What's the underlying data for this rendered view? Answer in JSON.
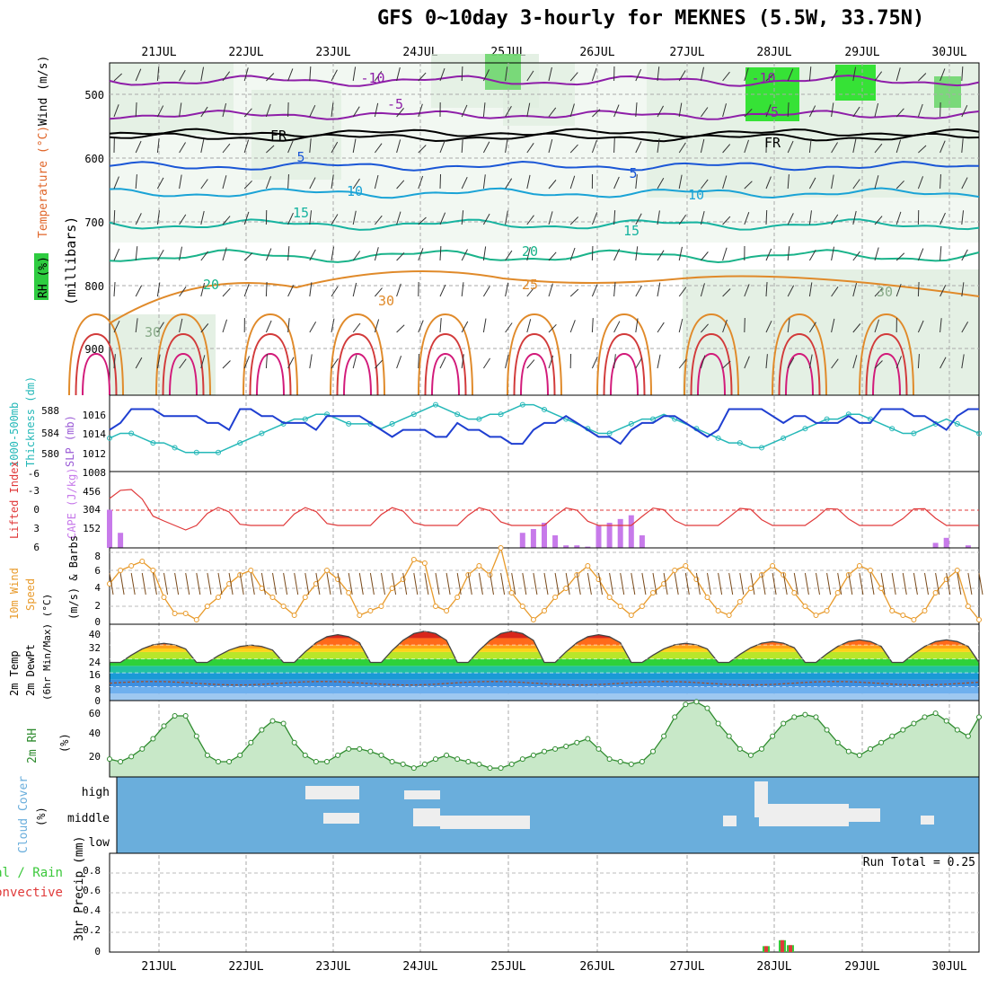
{
  "title": "GFS 0~10day 3-hourly for MEKNES (5.5W, 33.75N)",
  "dates": [
    "21JUL",
    "22JUL",
    "23JUL",
    "24JUL",
    "25JUL",
    "26JUL",
    "27JUL",
    "28JUL",
    "29JUL",
    "30JUL"
  ],
  "colors": {
    "rh_fill": "#2ecc40",
    "temp_contours": [
      "#8e1ea8",
      "#1a56d6",
      "#1aa3d6",
      "#17b3a0",
      "#1ab38a",
      "#e08a2a",
      "#d23a3a"
    ],
    "slp": "#1f3fd1",
    "thickness": "#25b8b8",
    "lifted_index": "#e0393a",
    "cape": "#c77aea",
    "wind_speed": "#e89a2a",
    "rh2m": "#2e8b2e",
    "cloud": "#6aaedc",
    "precip_total": "#3ac83a",
    "precip_conv": "#e03a3a"
  },
  "panels": {
    "upper": {
      "label_rh": "RH (%)",
      "label_temp": "Temperature (°C)",
      "label_wind": "Wind (m/s)",
      "label_axis": "(millibars)",
      "yticks": [
        "500",
        "600",
        "700",
        "800",
        "900"
      ],
      "contour_labels": [
        "-10",
        "-5",
        "FR",
        "5",
        "10",
        "15",
        "20",
        "25",
        "30",
        "-10",
        "-5",
        "FR",
        "5",
        "10",
        "15",
        "20",
        "25",
        "30",
        "30",
        "30"
      ]
    },
    "slp": {
      "label1": "1000-500mb",
      "label2": "Thickness (dm)",
      "label3": "SLP (mb)",
      "left_ticks": [
        "588",
        "584",
        "580"
      ],
      "right_ticks": [
        "1016",
        "1014",
        "1012",
        "1008"
      ]
    },
    "cape": {
      "label1": "Lifted Index",
      "label2": "CAPE (J/kg)",
      "li_ticks": [
        "-6",
        "-3",
        "0",
        "3",
        "6"
      ],
      "cape_ticks": [
        "456",
        "304",
        "152"
      ]
    },
    "wind10": {
      "label1": "10m Wind",
      "label2": "Speed",
      "label3": "(m/s) & Barbs",
      "yticks": [
        "8",
        "6",
        "4",
        "2",
        "0"
      ]
    },
    "temp2m": {
      "label1": "2m Temp",
      "label2": "2m DewPt",
      "label3": "(6hr Min/Max) (°C)",
      "yticks": [
        "40",
        "32",
        "24",
        "16",
        "8",
        "0"
      ]
    },
    "rh2m": {
      "label1": "2m RH",
      "label2": "(%)",
      "yticks": [
        "60",
        "40",
        "20"
      ]
    },
    "cloud": {
      "label1": "Cloud Cover",
      "label2": "(%)",
      "levels": [
        "high",
        "middle",
        "low"
      ]
    },
    "precip": {
      "label1": "Total / Rain",
      "label2": "Convective",
      "label3": "3hr Precip (mm)",
      "run_total": "Run Total = 0.25",
      "yticks": [
        "0.8",
        "0.6",
        "0.4",
        "0.2",
        "0"
      ]
    }
  },
  "chart_data": [
    {
      "type": "line",
      "name": "1000-500mb thickness and SLP",
      "x": "3-hourly steps from 20JUL 12Z to 30JUL 06Z",
      "series": [
        {
          "name": "SLP (mb)",
          "values": [
            1013,
            1014,
            1016,
            1016,
            1016,
            1015,
            1015,
            1015,
            1015,
            1014,
            1014,
            1013,
            1016,
            1016,
            1015,
            1015,
            1014,
            1014,
            1014,
            1013,
            1015,
            1015,
            1015,
            1015,
            1014,
            1013,
            1012,
            1013,
            1013,
            1013,
            1012,
            1012,
            1014,
            1013,
            1013,
            1012,
            1012,
            1011,
            1011,
            1013,
            1014,
            1014,
            1015,
            1014,
            1013,
            1012,
            1012,
            1011,
            1013,
            1014,
            1014,
            1015,
            1015,
            1014,
            1013,
            1012,
            1013,
            1016,
            1016,
            1016,
            1016,
            1015,
            1014,
            1015,
            1015,
            1014,
            1014,
            1014,
            1015,
            1014,
            1014,
            1016,
            1016,
            1016,
            1015,
            1015,
            1014,
            1013,
            1015,
            1016,
            1016
          ]
        },
        {
          "name": "1000-500mb thickness (dm)",
          "values": [
            583,
            584,
            584,
            583,
            582,
            582,
            581,
            580,
            580,
            580,
            580,
            581,
            582,
            583,
            584,
            585,
            586,
            587,
            587,
            588,
            588,
            587,
            586,
            586,
            586,
            585,
            586,
            587,
            588,
            589,
            590,
            589,
            588,
            587,
            587,
            588,
            588,
            589,
            590,
            590,
            589,
            588,
            587,
            586,
            585,
            584,
            584,
            585,
            586,
            587,
            587,
            588,
            587,
            586,
            585,
            584,
            583,
            582,
            582,
            581,
            581,
            582,
            583,
            584,
            585,
            586,
            587,
            587,
            588,
            588,
            587,
            586,
            585,
            584,
            584,
            585,
            586,
            587,
            586,
            585,
            584
          ]
        }
      ]
    },
    {
      "type": "bar",
      "name": "CAPE (J/kg)",
      "values": [
        304,
        120,
        0,
        0,
        0,
        0,
        0,
        0,
        0,
        0,
        0,
        0,
        0,
        0,
        0,
        0,
        0,
        0,
        0,
        0,
        0,
        0,
        0,
        0,
        0,
        0,
        0,
        0,
        0,
        0,
        0,
        0,
        0,
        0,
        0,
        0,
        0,
        0,
        120,
        150,
        200,
        100,
        20,
        20,
        10,
        180,
        200,
        230,
        260,
        100,
        0,
        0,
        0,
        0,
        0,
        0,
        0,
        0,
        0,
        0,
        0,
        0,
        0,
        0,
        0,
        0,
        0,
        0,
        0,
        0,
        0,
        0,
        0,
        0,
        0,
        0,
        40,
        80,
        0,
        20,
        0
      ]
    },
    {
      "type": "line",
      "name": "10m wind speed (m/s)",
      "values": [
        4.5,
        6.0,
        6.5,
        7.0,
        6.0,
        3.0,
        1.2,
        1.2,
        0.5,
        2.0,
        3.0,
        4.5,
        5.5,
        6.0,
        4.0,
        3.0,
        2.0,
        1.0,
        3.0,
        4.5,
        6.0,
        5.0,
        3.5,
        1.0,
        1.5,
        2.0,
        4.0,
        5.0,
        7.2,
        6.8,
        2.0,
        1.5,
        3.0,
        5.5,
        6.5,
        5.5,
        8.5,
        3.5,
        2.0,
        0.5,
        1.5,
        3.0,
        4.0,
        5.5,
        6.5,
        5.0,
        3.0,
        2.0,
        1.0,
        2.0,
        3.5,
        4.5,
        6.0,
        6.5,
        5.0,
        3.0,
        1.5,
        1.0,
        2.5,
        4.0,
        5.5,
        6.5,
        5.5,
        3.5,
        2.0,
        1.0,
        1.5,
        3.5,
        5.5,
        6.5,
        6.0,
        4.0,
        1.5,
        1.0,
        0.5,
        1.5,
        3.5,
        5.0,
        6.0,
        2.0,
        0.5
      ]
    },
    {
      "type": "line",
      "name": "2m relative humidity (%)",
      "values": [
        22,
        20,
        24,
        30,
        38,
        48,
        56,
        56,
        40,
        25,
        20,
        20,
        25,
        35,
        45,
        52,
        50,
        35,
        25,
        20,
        20,
        25,
        30,
        30,
        28,
        25,
        20,
        18,
        15,
        18,
        22,
        25,
        22,
        20,
        18,
        15,
        15,
        18,
        22,
        25,
        28,
        30,
        32,
        35,
        38,
        30,
        22,
        20,
        18,
        20,
        28,
        40,
        55,
        65,
        67,
        62,
        50,
        40,
        30,
        25,
        30,
        40,
        50,
        55,
        57,
        55,
        45,
        35,
        28,
        25,
        30,
        35,
        40,
        45,
        50,
        55,
        58,
        52,
        45,
        40,
        55
      ]
    },
    {
      "type": "bar",
      "name": "3hr precip (mm)",
      "values": [
        0.0,
        0.06,
        0.0,
        0.12,
        0.07,
        0.0
      ]
    }
  ]
}
